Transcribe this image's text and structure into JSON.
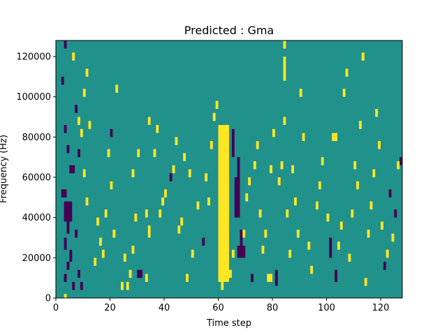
{
  "chart_data": {
    "type": "heatmap",
    "title": "Predicted : Gma",
    "xlabel": "Time step",
    "ylabel": "Frequency (Hz)",
    "xlim": [
      0,
      128
    ],
    "ylim": [
      0,
      128000
    ],
    "xticks": [
      0,
      20,
      40,
      60,
      80,
      100,
      120
    ],
    "yticks": [
      0,
      20000,
      40000,
      60000,
      80000,
      100000,
      120000
    ],
    "grid": false,
    "legend": "none",
    "colors": {
      "low": "#440154",
      "mid": "#21918c",
      "high": "#fde725"
    },
    "background_value": 0,
    "cells_note": "each cell: [time_step_start, time_step_end, freq_start_hz, freq_end_hz, value] with value -1 (low), 1 (high)",
    "cells": [
      [
        60,
        64,
        8000,
        86000,
        1
      ],
      [
        61,
        62,
        4000,
        8000,
        1
      ],
      [
        62,
        64,
        70000,
        86000,
        1
      ],
      [
        3,
        6,
        38000,
        48000,
        -1
      ],
      [
        4,
        5,
        32000,
        38000,
        -1
      ],
      [
        3,
        4,
        24000,
        30000,
        -1
      ],
      [
        5,
        6,
        18000,
        24000,
        -1
      ],
      [
        4,
        5,
        14000,
        18000,
        -1
      ],
      [
        3,
        4,
        8000,
        12000,
        -1
      ],
      [
        2,
        4,
        50000,
        54000,
        -1
      ],
      [
        5,
        7,
        62000,
        66000,
        -1
      ],
      [
        4,
        5,
        72000,
        76000,
        -1
      ],
      [
        3,
        4,
        82000,
        86000,
        -1
      ],
      [
        2,
        3,
        106000,
        110000,
        -1
      ],
      [
        3,
        4,
        124000,
        128000,
        -1
      ],
      [
        6,
        7,
        4000,
        8000,
        -1
      ],
      [
        7,
        8,
        30000,
        34000,
        -1
      ],
      [
        8,
        9,
        10000,
        14000,
        -1
      ],
      [
        9,
        10,
        4000,
        8000,
        -1
      ],
      [
        8,
        9,
        70000,
        74000,
        -1
      ],
      [
        10,
        11,
        60000,
        64000,
        1
      ],
      [
        11,
        12,
        46000,
        50000,
        1
      ],
      [
        10,
        11,
        100000,
        104000,
        1
      ],
      [
        11,
        12,
        110000,
        114000,
        1
      ],
      [
        9,
        10,
        80000,
        84000,
        1
      ],
      [
        12,
        13,
        84000,
        88000,
        1
      ],
      [
        6,
        7,
        118000,
        122000,
        1
      ],
      [
        8,
        9,
        86000,
        90000,
        1
      ],
      [
        7,
        8,
        92000,
        96000,
        -1
      ],
      [
        3,
        4,
        0,
        2000,
        1
      ],
      [
        14,
        15,
        16000,
        20000,
        1
      ],
      [
        15,
        16,
        36000,
        40000,
        1
      ],
      [
        16,
        17,
        26000,
        30000,
        1
      ],
      [
        17,
        18,
        20000,
        24000,
        1
      ],
      [
        18,
        19,
        40000,
        44000,
        1
      ],
      [
        19,
        20,
        70000,
        74000,
        1
      ],
      [
        20,
        21,
        54000,
        58000,
        1
      ],
      [
        21,
        22,
        30000,
        34000,
        1
      ],
      [
        20,
        21,
        80000,
        84000,
        -1
      ],
      [
        22,
        23,
        102000,
        106000,
        1
      ],
      [
        24,
        25,
        4000,
        8000,
        1
      ],
      [
        25,
        26,
        18000,
        22000,
        1
      ],
      [
        26,
        27,
        4000,
        8000,
        1
      ],
      [
        27,
        28,
        10000,
        14000,
        1
      ],
      [
        28,
        29,
        22000,
        26000,
        1
      ],
      [
        29,
        30,
        38000,
        42000,
        1
      ],
      [
        30,
        31,
        70000,
        74000,
        1
      ],
      [
        28,
        29,
        60000,
        64000,
        1
      ],
      [
        30,
        32,
        10000,
        14000,
        -1
      ],
      [
        33,
        34,
        8000,
        12000,
        1
      ],
      [
        34,
        35,
        30000,
        36000,
        1
      ],
      [
        33,
        34,
        40000,
        44000,
        1
      ],
      [
        34,
        35,
        86000,
        90000,
        1
      ],
      [
        36,
        37,
        70000,
        74000,
        1
      ],
      [
        37,
        38,
        82000,
        86000,
        1
      ],
      [
        38,
        39,
        40000,
        44000,
        1
      ],
      [
        39,
        40,
        46000,
        50000,
        1
      ],
      [
        40,
        41,
        50000,
        54000,
        1
      ],
      [
        42,
        43,
        58000,
        62000,
        -1
      ],
      [
        43,
        44,
        62000,
        66000,
        1
      ],
      [
        44,
        45,
        76000,
        80000,
        1
      ],
      [
        45,
        46,
        32000,
        36000,
        1
      ],
      [
        46,
        47,
        36000,
        40000,
        1
      ],
      [
        47,
        48,
        68000,
        72000,
        1
      ],
      [
        48,
        49,
        8000,
        12000,
        1
      ],
      [
        49,
        50,
        60000,
        64000,
        1
      ],
      [
        50,
        51,
        20000,
        24000,
        1
      ],
      [
        52,
        53,
        44000,
        48000,
        1
      ],
      [
        54,
        55,
        26000,
        30000,
        -1
      ],
      [
        55,
        56,
        58000,
        62000,
        1
      ],
      [
        56,
        57,
        46000,
        50000,
        1
      ],
      [
        57,
        58,
        74000,
        78000,
        1
      ],
      [
        58,
        59,
        88000,
        92000,
        1
      ],
      [
        59,
        60,
        94000,
        98000,
        1
      ],
      [
        64,
        65,
        10000,
        14000,
        1
      ],
      [
        65,
        66,
        20000,
        24000,
        1
      ],
      [
        66,
        68,
        40000,
        60000,
        -1
      ],
      [
        65,
        66,
        70000,
        84000,
        -1
      ],
      [
        67,
        68,
        60000,
        70000,
        -1
      ],
      [
        68,
        69,
        26000,
        34000,
        -1
      ],
      [
        69,
        70,
        30000,
        34000,
        1
      ],
      [
        67,
        70,
        20000,
        26000,
        -1
      ],
      [
        70,
        71,
        48000,
        52000,
        1
      ],
      [
        71,
        72,
        56000,
        60000,
        1
      ],
      [
        72,
        73,
        8000,
        12000,
        -1
      ],
      [
        73,
        74,
        64000,
        68000,
        1
      ],
      [
        74,
        75,
        74000,
        78000,
        1
      ],
      [
        75,
        76,
        40000,
        44000,
        1
      ],
      [
        76,
        77,
        22000,
        26000,
        1
      ],
      [
        77,
        78,
        30000,
        34000,
        1
      ],
      [
        78,
        80,
        8000,
        12000,
        1
      ],
      [
        79,
        80,
        62000,
        66000,
        1
      ],
      [
        80,
        81,
        80000,
        84000,
        1
      ],
      [
        81,
        82,
        6000,
        14000,
        -1
      ],
      [
        82,
        83,
        56000,
        60000,
        1
      ],
      [
        83,
        84,
        64000,
        68000,
        1
      ],
      [
        84,
        85,
        86000,
        90000,
        1
      ],
      [
        84,
        85,
        108000,
        120000,
        1
      ],
      [
        84,
        85,
        124000,
        128000,
        1
      ],
      [
        85,
        86,
        40000,
        44000,
        1
      ],
      [
        86,
        87,
        20000,
        24000,
        1
      ],
      [
        87,
        88,
        62000,
        66000,
        1
      ],
      [
        88,
        89,
        46000,
        50000,
        1
      ],
      [
        89,
        90,
        30000,
        34000,
        1
      ],
      [
        90,
        91,
        100000,
        104000,
        1
      ],
      [
        91,
        92,
        78000,
        82000,
        1
      ],
      [
        93,
        94,
        24000,
        28000,
        1
      ],
      [
        94,
        95,
        12000,
        16000,
        1
      ],
      [
        96,
        97,
        44000,
        48000,
        1
      ],
      [
        97,
        98,
        54000,
        58000,
        1
      ],
      [
        98,
        99,
        66000,
        70000,
        1
      ],
      [
        100,
        101,
        38000,
        42000,
        1
      ],
      [
        101,
        102,
        20000,
        30000,
        -1
      ],
      [
        102,
        104,
        78000,
        82000,
        1
      ],
      [
        103,
        104,
        8000,
        14000,
        -1
      ],
      [
        104,
        105,
        24000,
        28000,
        1
      ],
      [
        105,
        106,
        34000,
        38000,
        1
      ],
      [
        106,
        107,
        100000,
        104000,
        1
      ],
      [
        107,
        108,
        110000,
        114000,
        1
      ],
      [
        108,
        109,
        18000,
        22000,
        1
      ],
      [
        109,
        110,
        40000,
        44000,
        1
      ],
      [
        110,
        111,
        64000,
        68000,
        1
      ],
      [
        111,
        112,
        54000,
        58000,
        1
      ],
      [
        112,
        113,
        84000,
        88000,
        1
      ],
      [
        113,
        114,
        118000,
        122000,
        1
      ],
      [
        114,
        115,
        6000,
        10000,
        1
      ],
      [
        115,
        116,
        30000,
        34000,
        1
      ],
      [
        116,
        117,
        44000,
        48000,
        1
      ],
      [
        117,
        118,
        60000,
        64000,
        1
      ],
      [
        118,
        119,
        90000,
        94000,
        1
      ],
      [
        119,
        120,
        74000,
        78000,
        1
      ],
      [
        120,
        121,
        34000,
        38000,
        1
      ],
      [
        121,
        122,
        14000,
        18000,
        -1
      ],
      [
        122,
        123,
        20000,
        24000,
        1
      ],
      [
        123,
        124,
        50000,
        54000,
        -1
      ],
      [
        124,
        125,
        28000,
        32000,
        1
      ],
      [
        125,
        126,
        40000,
        44000,
        -1
      ],
      [
        126,
        127,
        64000,
        68000,
        1
      ],
      [
        127,
        128,
        66000,
        70000,
        -1
      ]
    ]
  }
}
